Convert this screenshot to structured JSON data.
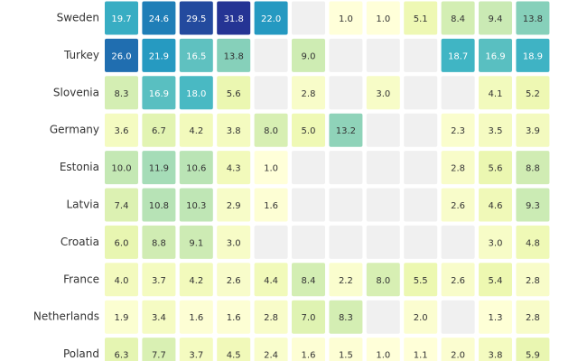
{
  "chart_data": {
    "type": "heatmap",
    "categories": [
      "Sweden",
      "Turkey",
      "Slovenia",
      "Germany",
      "Estonia",
      "Latvia",
      "Croatia",
      "France",
      "Netherlands",
      "Poland"
    ],
    "values": [
      [
        19.7,
        24.6,
        29.5,
        31.8,
        22.0,
        null,
        1.0,
        1.0,
        5.1,
        8.4,
        9.4,
        13.8
      ],
      [
        26.0,
        21.9,
        16.5,
        13.8,
        null,
        9.0,
        null,
        null,
        null,
        18.7,
        16.9,
        18.9
      ],
      [
        8.3,
        16.9,
        18.0,
        5.6,
        null,
        2.8,
        null,
        3.0,
        null,
        null,
        4.1,
        5.2
      ],
      [
        3.6,
        6.7,
        4.2,
        3.8,
        8.0,
        5.0,
        13.2,
        null,
        null,
        2.3,
        3.5,
        3.9
      ],
      [
        10.0,
        11.9,
        10.6,
        4.3,
        1.0,
        null,
        null,
        null,
        null,
        2.8,
        5.6,
        8.8
      ],
      [
        7.4,
        10.8,
        10.3,
        2.9,
        1.6,
        null,
        null,
        null,
        null,
        2.6,
        4.6,
        9.3
      ],
      [
        6.0,
        8.8,
        9.1,
        3.0,
        null,
        null,
        null,
        null,
        null,
        null,
        3.0,
        4.8
      ],
      [
        4.0,
        3.7,
        4.2,
        2.6,
        4.4,
        8.4,
        2.2,
        8.0,
        5.5,
        2.6,
        5.4,
        2.8
      ],
      [
        1.9,
        3.4,
        1.6,
        1.6,
        2.8,
        7.0,
        8.3,
        null,
        2.0,
        null,
        1.3,
        2.8
      ],
      [
        6.3,
        7.7,
        3.7,
        4.5,
        2.4,
        1.6,
        1.5,
        1.0,
        1.1,
        2.0,
        3.8,
        5.9
      ]
    ],
    "value_labels": [
      [
        "19.7",
        "24.6",
        "29.5",
        "31.8",
        "22.0",
        null,
        "1.0",
        "1.0",
        "5.1",
        "8.4",
        "9.4",
        "13.8"
      ],
      [
        "26.0",
        "21.9",
        "16.5",
        "13.8",
        null,
        "9.0",
        null,
        null,
        null,
        "18.7",
        "16.9",
        "18.9"
      ],
      [
        "8.3",
        "16.9",
        "18.0",
        "5.6",
        null,
        "2.8",
        null,
        "3.0",
        null,
        null,
        "4.1",
        "5.2"
      ],
      [
        "3.6",
        "6.7",
        "4.2",
        "3.8",
        "8.0",
        "5.0",
        "13.2",
        null,
        null,
        "2.3",
        "3.5",
        "3.9"
      ],
      [
        "10.0",
        "11.9",
        "10.6",
        "4.3",
        "1.0",
        null,
        null,
        null,
        null,
        "2.8",
        "5.6",
        "8.8"
      ],
      [
        "7.4",
        "10.8",
        "10.3",
        "2.9",
        "1.6",
        null,
        null,
        null,
        null,
        "2.6",
        "4.6",
        "9.3"
      ],
      [
        "6.0",
        "8.8",
        "9.1",
        "3.0",
        null,
        null,
        null,
        null,
        null,
        null,
        "3.0",
        "4.8"
      ],
      [
        "4.0",
        "3.7",
        "4.2",
        "2.6",
        "4.4",
        "8.4",
        "2.2",
        "8.0",
        "5.5",
        "2.6",
        "5.4",
        "2.8"
      ],
      [
        "1.9",
        "3.4",
        "1.6",
        "1.6",
        "2.8",
        "7.0",
        "8.3",
        null,
        "2.0",
        null,
        "1.3",
        "2.8"
      ],
      [
        "6.3",
        "7.7",
        "3.7",
        "4.5",
        "2.4",
        "1.6",
        "1.5",
        "1.0",
        "1.1",
        "2.0",
        "3.8",
        "5.9"
      ]
    ],
    "colors": [
      "#ffffd9",
      "#edf8b1",
      "#c7e9b4",
      "#7fcdbb",
      "#41b6c4",
      "#1d91c0",
      "#225ea8",
      "#253494"
    ],
    "empty_color": "#f0f0f0"
  }
}
